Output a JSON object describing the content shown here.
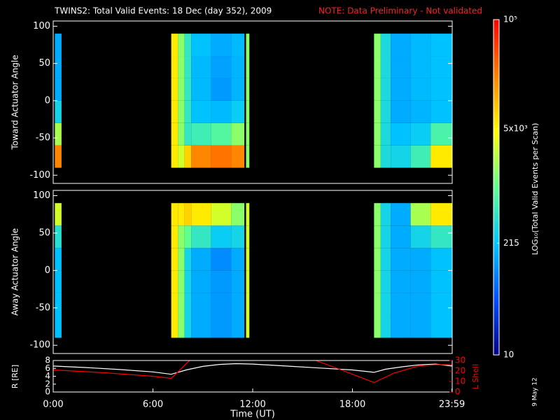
{
  "footer": "9 May 12",
  "chart_data": [
    {
      "type": "heatmap",
      "title": "TWINS2: Total Valid Events: 18 Dec (day 352), 2009",
      "note": "NOTE: Data Preliminary - Not validated",
      "ylabel": "Toward Actuator Angle",
      "xlim": [
        0,
        24
      ],
      "ylim": [
        -111,
        107
      ],
      "yticks": [
        -100,
        -50,
        0,
        50,
        100
      ],
      "x_edges": [
        0.1,
        0.5,
        7.1,
        7.5,
        7.9,
        8.3,
        9.5,
        10.7,
        11.5,
        11.6,
        11.8,
        19.3,
        19.7,
        20.3,
        21.5,
        22.7,
        24
      ],
      "y_edges": [
        -90,
        -60,
        -30,
        0,
        30,
        60,
        90
      ],
      "z": [
        [
          20000,
          2000,
          300,
          150,
          150,
          150
        ],
        [
          null,
          null,
          null,
          null,
          null,
          null
        ],
        [
          6000,
          6000,
          6000,
          6000,
          6000,
          6000
        ],
        [
          3000,
          1500,
          1500,
          1500,
          1500,
          1500
        ],
        [
          8000,
          500,
          500,
          500,
          500,
          500
        ],
        [
          20000,
          600,
          200,
          180,
          180,
          200
        ],
        [
          25000,
          800,
          180,
          120,
          130,
          150
        ],
        [
          20000,
          1500,
          250,
          170,
          170,
          180
        ],
        [
          null,
          null,
          null,
          null,
          null,
          null
        ],
        [
          1500,
          1500,
          1500,
          1500,
          1500,
          1500
        ],
        [
          null,
          null,
          null,
          null,
          null,
          null
        ],
        [
          1500,
          1500,
          1500,
          1500,
          1500,
          1500
        ],
        [
          350,
          350,
          350,
          350,
          350,
          350
        ],
        [
          300,
          200,
          150,
          150,
          150,
          150
        ],
        [
          600,
          250,
          170,
          180,
          180,
          180
        ],
        [
          6000,
          700,
          200,
          200,
          200,
          200
        ]
      ],
      "zlabel": "LOG₁₀(Total Valid Events per Scan)",
      "zscale": "log",
      "zlim": [
        10,
        100000
      ],
      "zticks": [
        10,
        215,
        {
          "value": 5000,
          "label": "5x10³"
        },
        {
          "value": 100000,
          "label": "10⁵"
        }
      ],
      "colormap": [
        "#00008c",
        "#0050ff",
        "#00c8ff",
        "#60ff90",
        "#ffff00",
        "#ff8000",
        "#ff0000"
      ]
    },
    {
      "type": "heatmap",
      "ylabel": "Away Actuator Angle",
      "xlim": [
        0,
        24
      ],
      "ylim": [
        -111,
        107
      ],
      "yticks": [
        -100,
        -50,
        0,
        50,
        100
      ],
      "x_edges": [
        0.1,
        0.5,
        7.1,
        7.5,
        7.9,
        8.3,
        9.5,
        10.7,
        11.5,
        11.6,
        11.8,
        19.3,
        19.7,
        20.3,
        21.5,
        22.7,
        24
      ],
      "y_edges": [
        -90,
        -60,
        -30,
        0,
        30,
        60,
        90
      ],
      "z": [
        [
          200,
          200,
          200,
          200,
          400,
          3000
        ],
        [
          null,
          null,
          null,
          null,
          null,
          null
        ],
        [
          6000,
          6000,
          6000,
          6000,
          6000,
          6000
        ],
        [
          1500,
          1500,
          1500,
          1500,
          1500,
          6000
        ],
        [
          300,
          300,
          300,
          300,
          1000,
          8000
        ],
        [
          150,
          150,
          150,
          150,
          500,
          6000
        ],
        [
          120,
          120,
          120,
          100,
          250,
          3000
        ],
        [
          150,
          150,
          150,
          150,
          300,
          1500
        ],
        [
          null,
          null,
          null,
          null,
          null,
          null
        ],
        [
          3000,
          3000,
          3000,
          3000,
          3000,
          3000
        ],
        [
          null,
          null,
          null,
          null,
          null,
          null
        ],
        [
          1500,
          1500,
          1500,
          1500,
          1500,
          1500
        ],
        [
          300,
          300,
          300,
          300,
          300,
          300
        ],
        [
          150,
          150,
          150,
          150,
          150,
          150
        ],
        [
          150,
          150,
          150,
          150,
          300,
          2000
        ],
        [
          200,
          200,
          200,
          200,
          500,
          6000
        ]
      ]
    },
    {
      "type": "line",
      "xlabel": "Time (UT)",
      "xlim": [
        0,
        24
      ],
      "xticks": [
        {
          "value": 0,
          "label": "0:00"
        },
        {
          "value": 6,
          "label": "6:00"
        },
        {
          "value": 12,
          "label": "12:00"
        },
        {
          "value": 18,
          "label": "18:00"
        },
        {
          "value": 23.983,
          "label": "23:59"
        }
      ],
      "ylabel": "R [RE]",
      "ylim": [
        0,
        8
      ],
      "yticks": [
        0,
        2,
        4,
        6,
        8
      ],
      "y2label": "L Shell",
      "y2lim": [
        0,
        30
      ],
      "y2ticks": [
        0,
        10,
        20,
        30
      ],
      "y2color": "#ff0000",
      "series": [
        {
          "color": "#ffffff",
          "x": [
            0,
            2,
            4,
            6,
            7.1,
            8,
            9,
            10,
            11,
            12,
            14,
            16,
            18,
            19.3,
            20,
            21,
            22,
            23,
            24
          ],
          "values": [
            6.6,
            6.2,
            5.7,
            5.1,
            4.5,
            5.6,
            6.5,
            7.0,
            7.2,
            7.1,
            6.6,
            6.1,
            5.6,
            5.0,
            5.8,
            6.4,
            6.9,
            7.1,
            6.6
          ]
        },
        {
          "color": "#ff0000",
          "axis": "y2",
          "x": [
            0,
            3,
            6,
            7.1,
            8.2,
            12,
            15.8,
            17.5,
            19.3,
            20.5,
            22,
            23,
            24
          ],
          "values": [
            21,
            18.5,
            15,
            13,
            30,
            null,
            30,
            20,
            9,
            18,
            25,
            26,
            26
          ]
        }
      ]
    }
  ]
}
